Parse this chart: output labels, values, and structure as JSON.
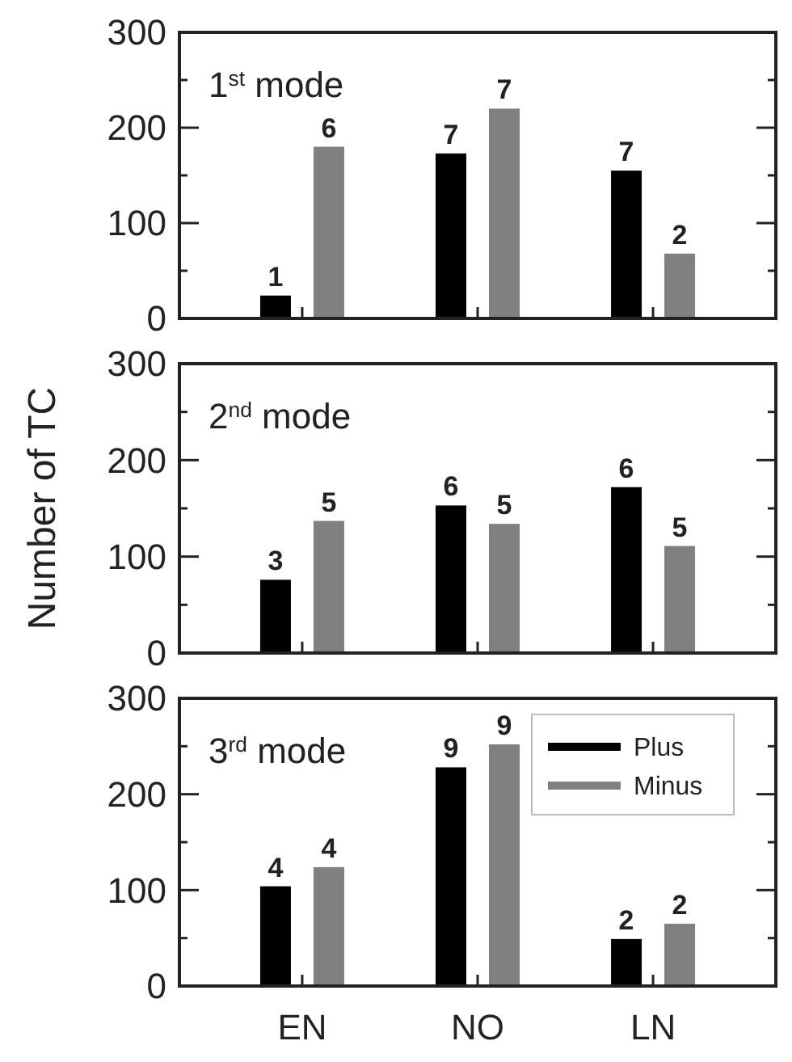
{
  "chart_data": [
    {
      "type": "bar",
      "title": "1$^{st}$ mode",
      "categories": [
        null,
        null,
        null
      ],
      "tick_labels": "y",
      "ylim": [
        0,
        300
      ],
      "yticks": [
        0,
        {
          "value": 50,
          "label": null
        },
        100,
        {
          "value": 150,
          "label": null
        },
        200,
        {
          "value": 250,
          "label": null
        },
        300
      ],
      "grid": false,
      "legend": false,
      "series": [
        {
          "color": "#000000",
          "values": [
            24,
            173,
            155
          ]
        },
        {
          "color": "#808080",
          "values": [
            180,
            220,
            68
          ]
        }
      ],
      "annotations": [
        "1",
        "7",
        "7",
        "6",
        "7",
        "2"
      ]
    },
    {
      "type": "bar",
      "title": "2$^{nd}$ mode",
      "ylabel": "Number of TC",
      "categories": [
        null,
        null,
        null
      ],
      "tick_labels": "y",
      "ylim": [
        0,
        300
      ],
      "yticks": [
        0,
        {
          "value": 50,
          "label": null
        },
        100,
        {
          "value": 150,
          "label": null
        },
        200,
        {
          "value": 250,
          "label": null
        },
        300
      ],
      "grid": false,
      "legend": false,
      "series": [
        {
          "color": "#000000",
          "values": [
            76,
            153,
            172
          ]
        },
        {
          "color": "#808080",
          "values": [
            137,
            134,
            111
          ]
        }
      ],
      "annotations": [
        "3",
        "6",
        "6",
        "5",
        "5",
        "5"
      ]
    },
    {
      "type": "bar",
      "title": "3$^{rd}$ mode",
      "categories": [
        "EN",
        "NO",
        "LN"
      ],
      "ylim": [
        0,
        300
      ],
      "yticks": [
        0,
        {
          "value": 50,
          "label": null
        },
        100,
        {
          "value": 150,
          "label": null
        },
        200,
        {
          "value": 250,
          "label": null
        },
        300
      ],
      "grid": false,
      "legend": "top right",
      "series": [
        {
          "name": "Plus",
          "color": "#000000",
          "values": [
            104,
            228,
            49
          ]
        },
        {
          "name": "Minus",
          "color": "#808080",
          "values": [
            124,
            252,
            65
          ]
        }
      ],
      "annotations": [
        "4",
        "9",
        "2",
        "4",
        "9",
        "2"
      ]
    }
  ]
}
